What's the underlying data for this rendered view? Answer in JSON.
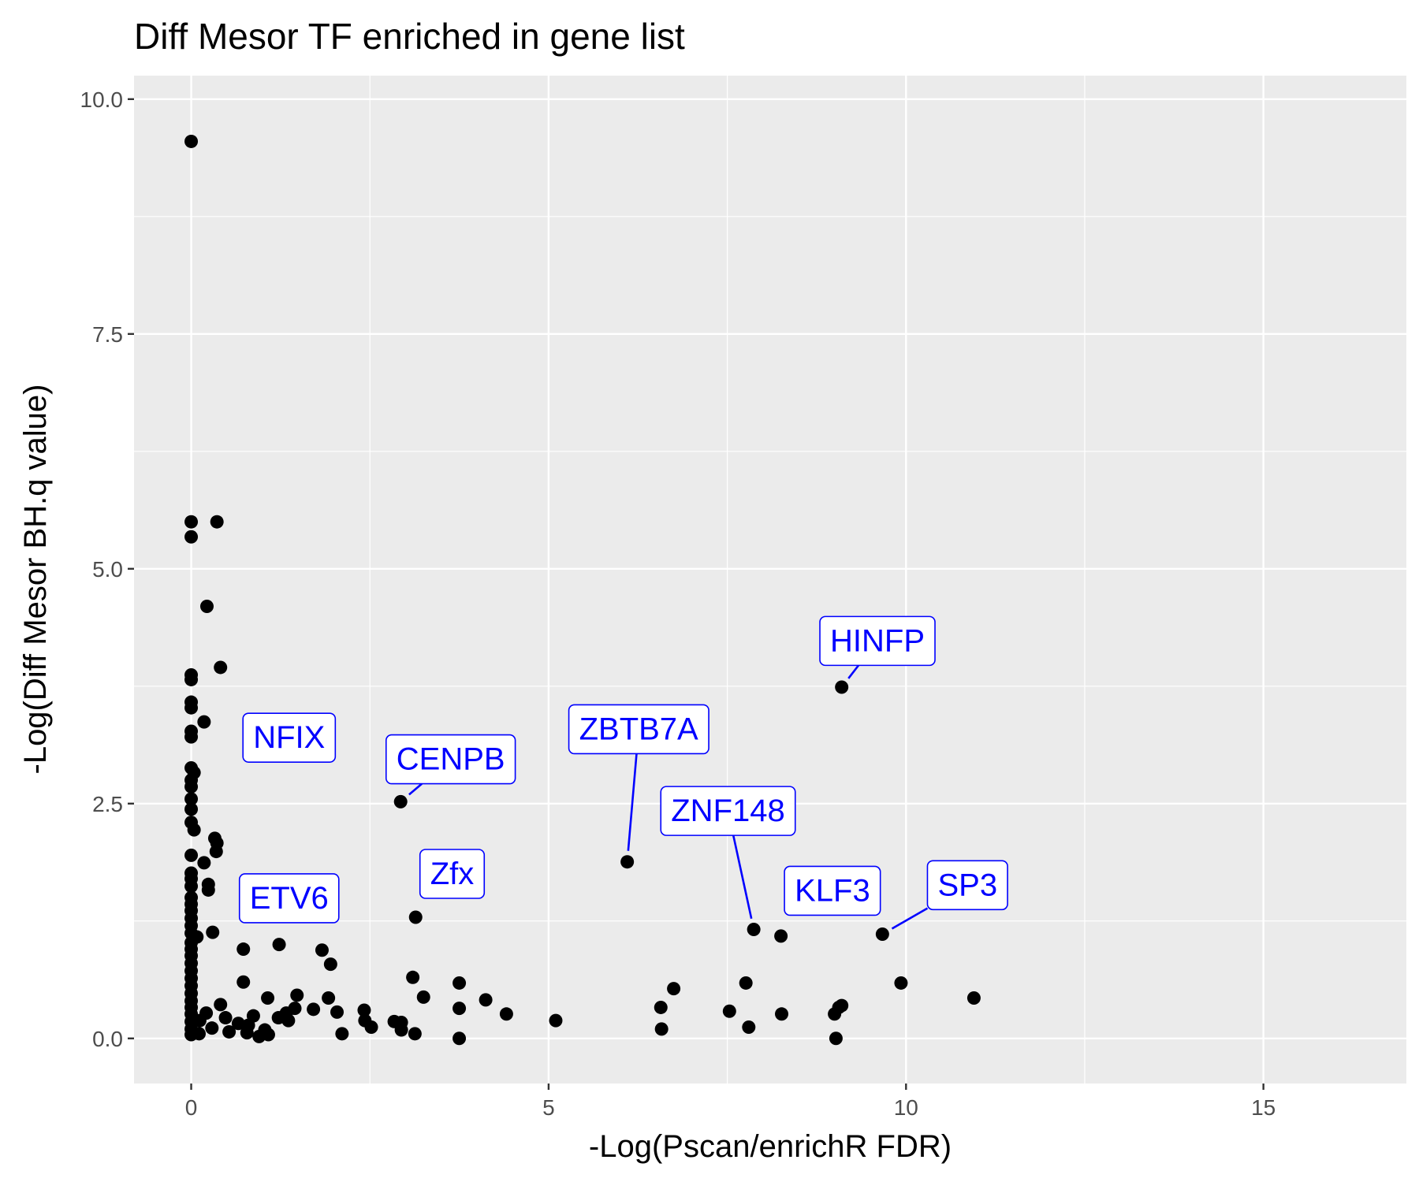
{
  "chart_data": {
    "type": "scatter",
    "title": "Diff Mesor TF enriched in gene list",
    "xlabel": "-Log(Pscan/enrichR FDR)",
    "ylabel": "-Log(Diff Mesor BH.q value)",
    "xlim": [
      -0.8,
      17
    ],
    "ylim": [
      -0.48,
      10.25
    ],
    "x_ticks": [
      0,
      5,
      10,
      15
    ],
    "x_tick_labels": [
      "0",
      "5",
      "10",
      "15"
    ],
    "y_ticks": [
      0,
      2.5,
      5,
      7.5,
      10
    ],
    "y_tick_labels": [
      "0.0",
      "2.5",
      "5.0",
      "7.5",
      "10.0"
    ],
    "grid": true,
    "point_color": "#000000",
    "label_color": "#0000ff",
    "panel_background": "#ebebeb",
    "points": [
      {
        "x": 0.0,
        "y": 9.55
      },
      {
        "x": 0.0,
        "y": 5.5
      },
      {
        "x": 0.0,
        "y": 5.34
      },
      {
        "x": 0.36,
        "y": 5.5
      },
      {
        "x": 0.22,
        "y": 4.6
      },
      {
        "x": 0.41,
        "y": 3.95
      },
      {
        "x": 0.0,
        "y": 3.87
      },
      {
        "x": 0.0,
        "y": 3.82
      },
      {
        "x": 0.0,
        "y": 3.58
      },
      {
        "x": 0.0,
        "y": 3.52
      },
      {
        "x": 0.18,
        "y": 3.37
      },
      {
        "x": 0.0,
        "y": 3.27
      },
      {
        "x": 0.0,
        "y": 3.21
      },
      {
        "x": 0.0,
        "y": 2.88
      },
      {
        "x": 0.04,
        "y": 2.83
      },
      {
        "x": 0.0,
        "y": 2.75
      },
      {
        "x": 0.0,
        "y": 2.68
      },
      {
        "x": 0.0,
        "y": 2.55
      },
      {
        "x": 0.0,
        "y": 2.44
      },
      {
        "x": 0.0,
        "y": 2.3
      },
      {
        "x": 0.04,
        "y": 2.22
      },
      {
        "x": 0.33,
        "y": 2.13
      },
      {
        "x": 0.36,
        "y": 2.08
      },
      {
        "x": 0.35,
        "y": 1.99
      },
      {
        "x": 0.0,
        "y": 1.95
      },
      {
        "x": 0.18,
        "y": 1.87
      },
      {
        "x": 0.0,
        "y": 1.76
      },
      {
        "x": 0.0,
        "y": 1.7
      },
      {
        "x": 0.0,
        "y": 1.62
      },
      {
        "x": 0.24,
        "y": 1.64
      },
      {
        "x": 0.24,
        "y": 1.58
      },
      {
        "x": 0.0,
        "y": 1.5
      },
      {
        "x": 0.0,
        "y": 1.43
      },
      {
        "x": 0.0,
        "y": 1.36
      },
      {
        "x": 0.0,
        "y": 1.28
      },
      {
        "x": 0.0,
        "y": 1.2
      },
      {
        "x": 0.0,
        "y": 1.12
      },
      {
        "x": 0.3,
        "y": 1.13
      },
      {
        "x": 0.08,
        "y": 1.08
      },
      {
        "x": 0.0,
        "y": 1.02
      },
      {
        "x": 0.0,
        "y": 0.95
      },
      {
        "x": 0.0,
        "y": 0.88
      },
      {
        "x": 0.0,
        "y": 0.8
      },
      {
        "x": 0.0,
        "y": 0.72
      },
      {
        "x": 0.0,
        "y": 0.64
      },
      {
        "x": 0.0,
        "y": 0.56
      },
      {
        "x": 0.0,
        "y": 0.48
      },
      {
        "x": 0.0,
        "y": 0.4
      },
      {
        "x": 0.0,
        "y": 0.33
      },
      {
        "x": 0.0,
        "y": 0.26
      },
      {
        "x": 0.0,
        "y": 0.18
      },
      {
        "x": 0.0,
        "y": 0.1
      },
      {
        "x": 0.0,
        "y": 0.04
      },
      {
        "x": 0.41,
        "y": 0.36
      },
      {
        "x": 0.21,
        "y": 0.27
      },
      {
        "x": 0.48,
        "y": 0.22
      },
      {
        "x": 0.12,
        "y": 0.19
      },
      {
        "x": 0.66,
        "y": 0.16
      },
      {
        "x": 0.29,
        "y": 0.11
      },
      {
        "x": 0.53,
        "y": 0.07
      },
      {
        "x": 0.11,
        "y": 0.05
      },
      {
        "x": 0.73,
        "y": 0.6
      },
      {
        "x": 0.73,
        "y": 0.95
      },
      {
        "x": 0.87,
        "y": 0.24
      },
      {
        "x": 0.8,
        "y": 0.14
      },
      {
        "x": 0.78,
        "y": 0.06
      },
      {
        "x": 0.95,
        "y": 0.02
      },
      {
        "x": 1.03,
        "y": 0.09
      },
      {
        "x": 1.08,
        "y": 0.04
      },
      {
        "x": 1.07,
        "y": 0.43
      },
      {
        "x": 1.22,
        "y": 0.22
      },
      {
        "x": 1.23,
        "y": 1.0
      },
      {
        "x": 1.33,
        "y": 0.27
      },
      {
        "x": 1.36,
        "y": 0.19
      },
      {
        "x": 1.45,
        "y": 0.32
      },
      {
        "x": 1.48,
        "y": 0.46
      },
      {
        "x": 1.71,
        "y": 0.31
      },
      {
        "x": 1.83,
        "y": 0.94
      },
      {
        "x": 1.92,
        "y": 0.43
      },
      {
        "x": 1.95,
        "y": 0.79
      },
      {
        "x": 2.04,
        "y": 0.28
      },
      {
        "x": 2.11,
        "y": 0.05
      },
      {
        "x": 2.42,
        "y": 0.3
      },
      {
        "x": 2.43,
        "y": 0.19
      },
      {
        "x": 2.52,
        "y": 0.12
      },
      {
        "x": 2.84,
        "y": 0.18
      },
      {
        "x": 2.94,
        "y": 0.17
      },
      {
        "x": 2.94,
        "y": 0.09
      },
      {
        "x": 2.93,
        "y": 2.52
      },
      {
        "x": 3.13,
        "y": 0.05
      },
      {
        "x": 3.1,
        "y": 0.65
      },
      {
        "x": 3.14,
        "y": 1.29
      },
      {
        "x": 3.25,
        "y": 0.44
      },
      {
        "x": 3.75,
        "y": 0.59
      },
      {
        "x": 3.75,
        "y": 0.32
      },
      {
        "x": 3.75,
        "y": 0.0
      },
      {
        "x": 4.12,
        "y": 0.41
      },
      {
        "x": 4.41,
        "y": 0.26
      },
      {
        "x": 5.1,
        "y": 0.19
      },
      {
        "x": 6.1,
        "y": 1.88
      },
      {
        "x": 6.57,
        "y": 0.33
      },
      {
        "x": 6.58,
        "y": 0.1
      },
      {
        "x": 6.75,
        "y": 0.53
      },
      {
        "x": 7.53,
        "y": 0.29
      },
      {
        "x": 7.76,
        "y": 0.59
      },
      {
        "x": 7.8,
        "y": 0.12
      },
      {
        "x": 7.87,
        "y": 1.16
      },
      {
        "x": 8.25,
        "y": 1.09
      },
      {
        "x": 8.26,
        "y": 0.26
      },
      {
        "x": 9.0,
        "y": 0.26
      },
      {
        "x": 9.02,
        "y": 0.0
      },
      {
        "x": 9.06,
        "y": 0.33
      },
      {
        "x": 9.1,
        "y": 0.35
      },
      {
        "x": 9.1,
        "y": 3.74
      },
      {
        "x": 9.67,
        "y": 1.11
      },
      {
        "x": 9.93,
        "y": 0.59
      },
      {
        "x": 10.95,
        "y": 0.43
      }
    ],
    "annotations": [
      {
        "label": "NFIX",
        "x": 1.05,
        "y": 2.67,
        "label_x": 1.37,
        "label_y": 3.21
      },
      {
        "label": "CENPB",
        "x": 2.93,
        "y": 2.52,
        "label_x": 3.63,
        "label_y": 2.98
      },
      {
        "label": "ETV6",
        "x": 1.05,
        "y": 1.27,
        "label_x": 1.37,
        "label_y": 1.5
      },
      {
        "label": "Zfx",
        "x": 3.2,
        "y": 1.5,
        "label_x": 3.65,
        "label_y": 1.76
      },
      {
        "label": "ZBTB7A",
        "x": 6.1,
        "y": 1.88,
        "label_x": 6.26,
        "label_y": 3.3
      },
      {
        "label": "ZNF148",
        "x": 7.87,
        "y": 1.16,
        "label_x": 7.51,
        "label_y": 2.43
      },
      {
        "label": "KLF3",
        "x": 8.25,
        "y": 1.4,
        "label_x": 8.97,
        "label_y": 1.58
      },
      {
        "label": "HINFP",
        "x": 9.1,
        "y": 3.74,
        "label_x": 9.6,
        "label_y": 4.24
      },
      {
        "label": "SP3",
        "x": 9.67,
        "y": 1.11,
        "label_x": 10.86,
        "label_y": 1.64
      }
    ]
  }
}
